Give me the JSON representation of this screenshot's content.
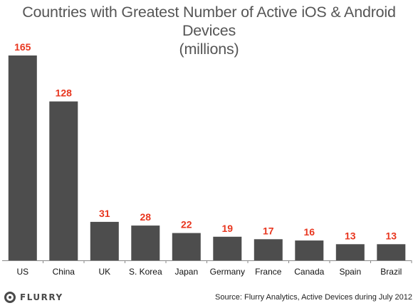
{
  "chart_data": {
    "type": "bar",
    "title": "Countries with Greatest Number of Active iOS & Android Devices",
    "subtitle": "(millions)",
    "categories": [
      "US",
      "China",
      "UK",
      "S. Korea",
      "Japan",
      "Germany",
      "France",
      "Canada",
      "Spain",
      "Brazil"
    ],
    "values": [
      165,
      128,
      31,
      28,
      22,
      19,
      17,
      16,
      13,
      13
    ],
    "xlabel": "",
    "ylabel": "",
    "ylim": [
      0,
      165
    ],
    "grid": false,
    "legend": "none",
    "data_labels": true
  },
  "colors": {
    "bar": "#4d4d4d",
    "value_label": "#e8361f",
    "title": "#555555",
    "axis": "#888888"
  },
  "footer": {
    "logo_text": "FLURRY",
    "logo_icon": "flurry-logo-icon",
    "source": "Source: Flurry Analytics, Active Devices during July 2012"
  }
}
